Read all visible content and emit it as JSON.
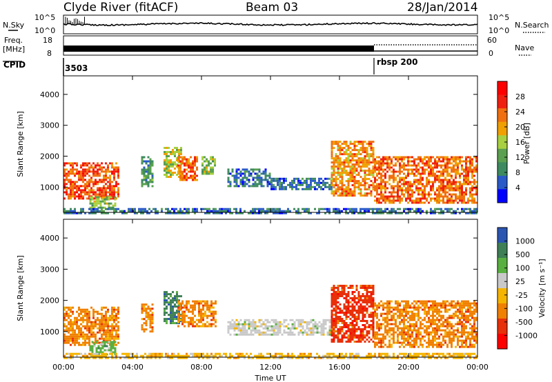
{
  "header": {
    "radar": "Clyde River (fitACF)",
    "beam": "Beam 03",
    "date": "28/Jan/2014"
  },
  "top_panels": {
    "nsky_label": "N.Sky",
    "nsearch_label": "N.Search",
    "nsky_ticks": [
      "10^5",
      "10^0"
    ],
    "nsearch_ticks": [
      "10^5",
      "10^0"
    ],
    "freq_label_line1": "Freq.",
    "freq_label_line2": "[MHz]",
    "freq_ticks": [
      "18",
      "8"
    ],
    "nave_label": "Nave",
    "nave_ticks": [
      "60",
      "0"
    ],
    "cpid_label": "CPID",
    "cpid_values": [
      "3503",
      "rbsp 200"
    ],
    "cpid_change_time_h": 18.0
  },
  "axes": {
    "xlabel": "Time UT",
    "xticks": [
      "00:00",
      "04:00",
      "08:00",
      "12:00",
      "16:00",
      "20:00",
      "00:00"
    ],
    "xlim_h": [
      0,
      24
    ],
    "ylabel": "Slant Range [km]",
    "yticks": [
      1000,
      2000,
      3000,
      4000
    ],
    "ylim_km": [
      180,
      4600
    ]
  },
  "chart_data": [
    {
      "type": "heatmap",
      "name": "power",
      "colorbar_label": "Power [dB]",
      "colorbar_ticks": [
        "4",
        "8",
        "12",
        "16",
        "20",
        "24",
        "28"
      ],
      "range_db": [
        0,
        32
      ],
      "colors": [
        "#0000ff",
        "#2a5ac8",
        "#3d8a60",
        "#5aa050",
        "#a8d040",
        "#f0a000",
        "#f07010",
        "#f02010",
        "#ff0000"
      ],
      "regions": [
        {
          "t": [
            0.0,
            3.2
          ],
          "r": [
            600,
            1800
          ],
          "level": 26
        },
        {
          "t": [
            1.5,
            3.0
          ],
          "r": [
            300,
            700
          ],
          "level": 14
        },
        {
          "t": [
            4.5,
            5.2
          ],
          "r": [
            1000,
            2000
          ],
          "level": 10
        },
        {
          "t": [
            5.8,
            6.8
          ],
          "r": [
            1300,
            2300
          ],
          "level": 16
        },
        {
          "t": [
            6.6,
            7.8
          ],
          "r": [
            1200,
            2000
          ],
          "level": 24
        },
        {
          "t": [
            8.0,
            8.8
          ],
          "r": [
            1400,
            2000
          ],
          "level": 14
        },
        {
          "t": [
            9.5,
            12.0
          ],
          "r": [
            1000,
            1600
          ],
          "level": 6
        },
        {
          "t": [
            12.0,
            15.5
          ],
          "r": [
            900,
            1300
          ],
          "level": 6
        },
        {
          "t": [
            15.5,
            18.0
          ],
          "r": [
            700,
            2500
          ],
          "level": 22
        },
        {
          "t": [
            18.0,
            24.0
          ],
          "r": [
            500,
            2000
          ],
          "level": 24
        },
        {
          "t": [
            0.0,
            24.0
          ],
          "r": [
            180,
            320
          ],
          "level": 6
        }
      ]
    },
    {
      "type": "heatmap",
      "name": "velocity",
      "colorbar_label": "Velocity [m s⁻¹]",
      "colorbar_ticks": [
        "1000",
        "500",
        "100",
        "25",
        "-25",
        "-100",
        "-500",
        "-1000"
      ],
      "colors": [
        "#2a55b0",
        "#3e7f55",
        "#59b040",
        "#c9c9c9",
        "#f5b400",
        "#f08000",
        "#e8300a",
        "#ff0000"
      ],
      "regions": [
        {
          "t": [
            0.0,
            3.2
          ],
          "r": [
            600,
            1800
          ],
          "class": 5
        },
        {
          "t": [
            1.5,
            3.0
          ],
          "r": [
            300,
            700
          ],
          "class": 2
        },
        {
          "t": [
            4.5,
            5.2
          ],
          "r": [
            1000,
            1900
          ],
          "class": 5
        },
        {
          "t": [
            5.8,
            6.8
          ],
          "r": [
            1300,
            2300
          ],
          "class": 1
        },
        {
          "t": [
            6.6,
            8.8
          ],
          "r": [
            1200,
            2000
          ],
          "class": 5
        },
        {
          "t": [
            9.5,
            15.5
          ],
          "r": [
            900,
            1400
          ],
          "class": 3
        },
        {
          "t": [
            15.5,
            18.0
          ],
          "r": [
            700,
            2500
          ],
          "class": 6
        },
        {
          "t": [
            18.0,
            24.0
          ],
          "r": [
            500,
            2000
          ],
          "class": 5
        },
        {
          "t": [
            0.0,
            24.0
          ],
          "r": [
            180,
            320
          ],
          "class": 4
        }
      ]
    }
  ]
}
